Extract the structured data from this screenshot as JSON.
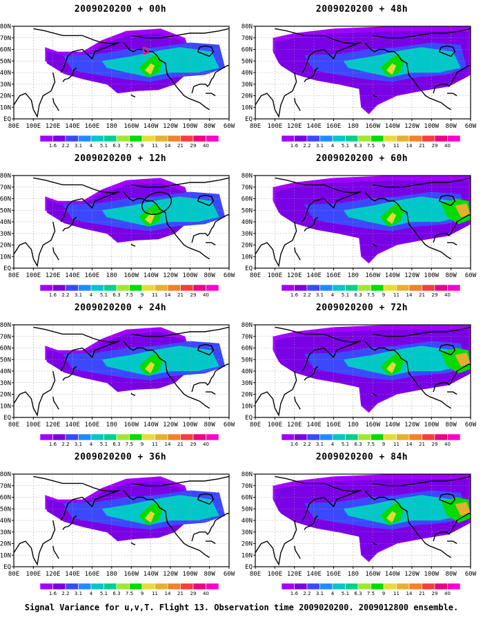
{
  "caption": "Signal Variance for u,v,T. Flight 13. Observation time 2009020200. 2009012800 ensemble.",
  "colorbar": {
    "labels": [
      "1.6",
      "2.2",
      "3.1",
      "4",
      "5.1",
      "6.3",
      "7.5",
      "9",
      "11",
      "14",
      "21",
      "29",
      "40"
    ],
    "colors": [
      "#a100ff",
      "#7a00e6",
      "#3c48ff",
      "#1e8cff",
      "#00c8c8",
      "#00d08c",
      "#a0e632",
      "#00dc00",
      "#e6dc32",
      "#e6af2d",
      "#f08228",
      "#fa3c3c",
      "#f00082",
      "#ff00c8"
    ]
  },
  "x_ticks": [
    "80E",
    "100E",
    "120E",
    "140E",
    "160E",
    "180",
    "160W",
    "140W",
    "120W",
    "100W",
    "80W",
    "60W"
  ],
  "y_ticks": [
    "80N",
    "70N",
    "60N",
    "50N",
    "40N",
    "30N",
    "20N",
    "10N",
    "EQ"
  ],
  "chart_data": [
    {
      "type": "heatmap",
      "title": "2009020200 + 00h",
      "lead_hours": 0,
      "x_range": [
        "80E",
        "60W"
      ],
      "y_range": [
        "EQ",
        "80N"
      ],
      "grid": true,
      "colorbar": "below",
      "max_level": "9",
      "annotation": "red hand-drawn mark near 140W 55N"
    },
    {
      "type": "heatmap",
      "title": "2009020200 + 12h",
      "lead_hours": 12,
      "x_range": [
        "80E",
        "60W"
      ],
      "y_range": [
        "EQ",
        "80N"
      ],
      "grid": true,
      "colorbar": "below",
      "max_level": "9",
      "annotation": "black ellipse near 135W 55N"
    },
    {
      "type": "heatmap",
      "title": "2009020200 + 24h",
      "lead_hours": 24,
      "x_range": [
        "80E",
        "60W"
      ],
      "y_range": [
        "EQ",
        "80N"
      ],
      "grid": true,
      "colorbar": "below",
      "max_level": "11"
    },
    {
      "type": "heatmap",
      "title": "2009020200 + 36h",
      "lead_hours": 36,
      "x_range": [
        "80E",
        "60W"
      ],
      "y_range": [
        "EQ",
        "80N"
      ],
      "grid": true,
      "colorbar": "below",
      "max_level": "11"
    },
    {
      "type": "heatmap",
      "title": "2009020200 + 48h",
      "lead_hours": 48,
      "x_range": [
        "80E",
        "60W"
      ],
      "y_range": [
        "EQ",
        "80N"
      ],
      "grid": true,
      "colorbar": "below",
      "max_level": "11"
    },
    {
      "type": "heatmap",
      "title": "2009020200 + 60h",
      "lead_hours": 60,
      "x_range": [
        "80E",
        "60W"
      ],
      "y_range": [
        "EQ",
        "80N"
      ],
      "grid": true,
      "colorbar": "below",
      "max_level": "14"
    },
    {
      "type": "heatmap",
      "title": "2009020200 + 72h",
      "lead_hours": 72,
      "x_range": [
        "80E",
        "60W"
      ],
      "y_range": [
        "EQ",
        "80N"
      ],
      "grid": true,
      "colorbar": "below",
      "max_level": "14"
    },
    {
      "type": "heatmap",
      "title": "2009020200 + 84h",
      "lead_hours": 84,
      "x_range": [
        "80E",
        "60W"
      ],
      "y_range": [
        "EQ",
        "80N"
      ],
      "grid": true,
      "colorbar": "below",
      "max_level": "14"
    }
  ]
}
